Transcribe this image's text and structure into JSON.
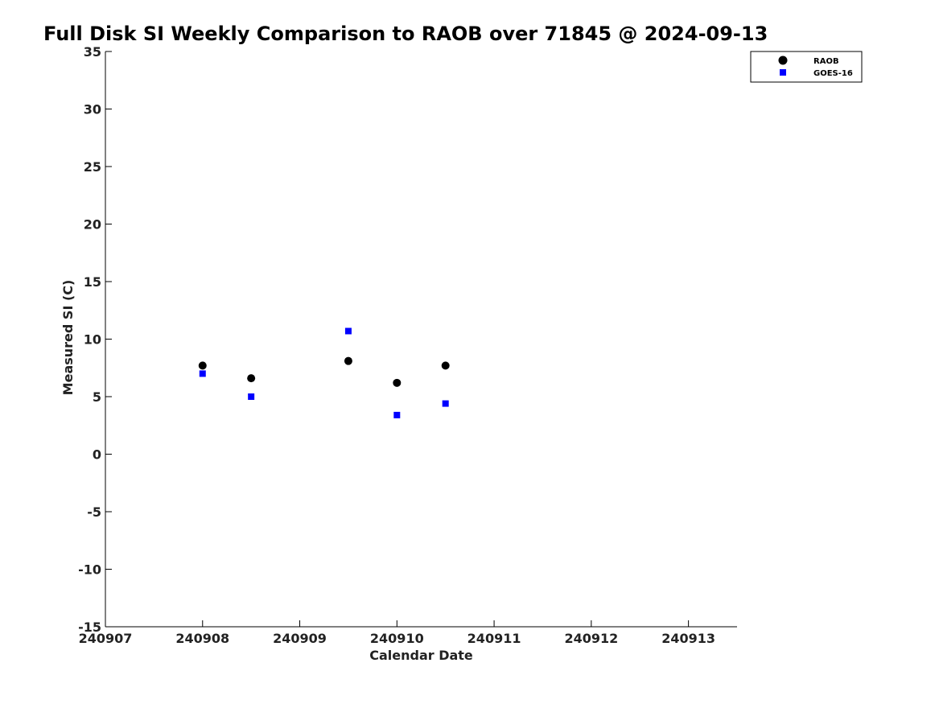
{
  "chart_data": {
    "type": "scatter",
    "title": "Full Disk SI Weekly Comparison to RAOB over 71845 @ 2024-09-13",
    "xlabel": "Calendar Date",
    "ylabel": "Measured SI (C)",
    "xlim": [
      240907,
      240913.5
    ],
    "ylim": [
      -15,
      35
    ],
    "xticks": [
      240907,
      240908,
      240909,
      240910,
      240911,
      240912,
      240913
    ],
    "xtick_labels": [
      "240907",
      "240908",
      "240909",
      "240910",
      "240911",
      "240912",
      "240913"
    ],
    "yticks": [
      -15,
      -10,
      -5,
      0,
      5,
      10,
      15,
      20,
      25,
      30,
      35
    ],
    "ytick_labels": [
      "-15",
      "-10",
      "-5",
      "0",
      "5",
      "10",
      "15",
      "20",
      "25",
      "30",
      "35"
    ],
    "grid": false,
    "legend_position": "top-right",
    "series": [
      {
        "name": "RAOB",
        "marker": "circle",
        "color": "#000000",
        "x": [
          240908,
          240908.5,
          240909.5,
          240910,
          240910.5
        ],
        "y": [
          7.7,
          6.6,
          8.1,
          6.2,
          7.7
        ]
      },
      {
        "name": "GOES-16",
        "marker": "square",
        "color": "#0000ff",
        "x": [
          240908,
          240908.5,
          240909.5,
          240910,
          240910.5
        ],
        "y": [
          7.0,
          5.0,
          10.7,
          3.4,
          4.4
        ]
      }
    ]
  }
}
